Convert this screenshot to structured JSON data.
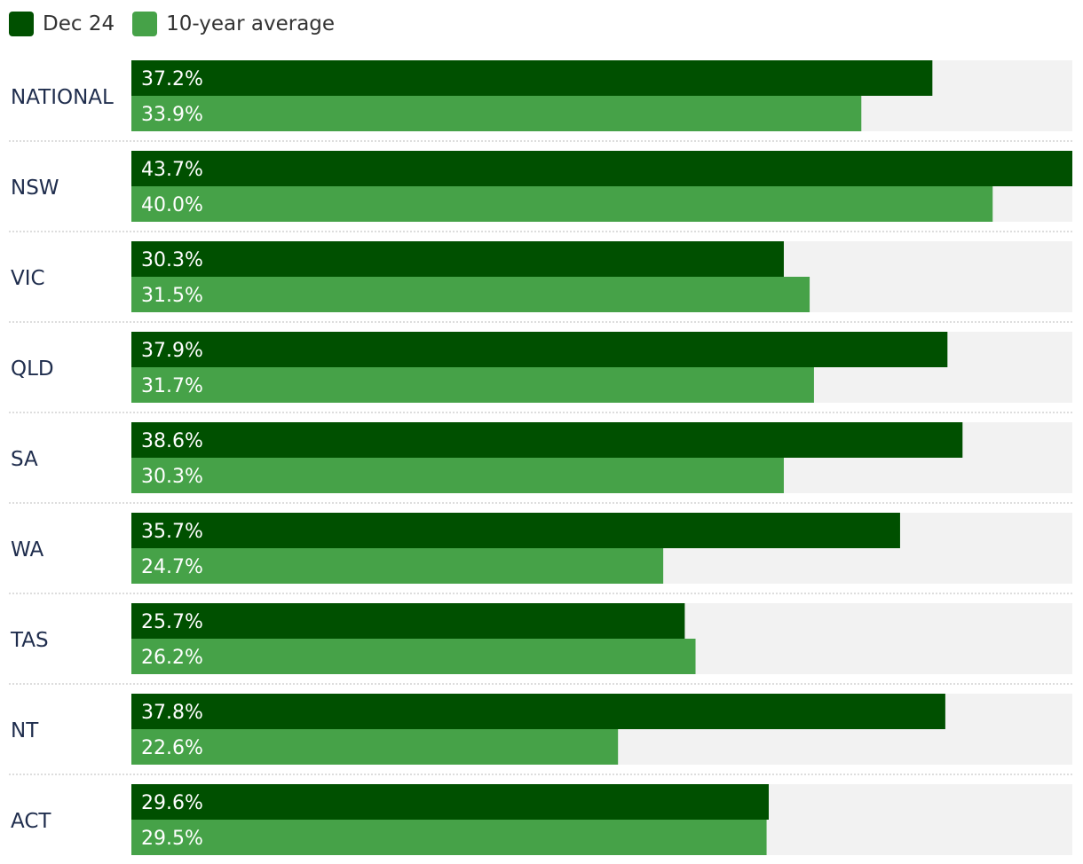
{
  "legend": [
    {
      "label": "Dec 24",
      "color": "#005000"
    },
    {
      "label": "10-year average",
      "color": "#46a248"
    }
  ],
  "chart_data": {
    "type": "bar",
    "orientation": "horizontal",
    "categories": [
      "NATIONAL",
      "NSW",
      "VIC",
      "QLD",
      "SA",
      "WA",
      "TAS",
      "NT",
      "ACT"
    ],
    "series": [
      {
        "name": "Dec 24",
        "color": "#005000",
        "values": [
          37.2,
          43.7,
          30.3,
          37.9,
          38.6,
          35.7,
          25.7,
          37.8,
          29.6
        ]
      },
      {
        "name": "10-year average",
        "color": "#46a248",
        "values": [
          33.9,
          40.0,
          31.5,
          31.7,
          30.3,
          24.7,
          26.2,
          22.6,
          29.5
        ]
      }
    ],
    "value_format": "%",
    "xlim": [
      0,
      43.7
    ],
    "grid": false,
    "legend_position": "top-left",
    "track_color": "#f2f2f2"
  }
}
